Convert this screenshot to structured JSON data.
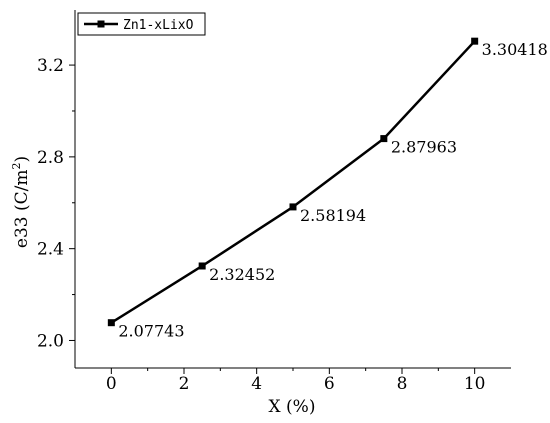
{
  "chart_data": {
    "type": "line",
    "title": "",
    "xlabel": "X (%)",
    "ylabel": {
      "main": "e33 (C/m",
      "sup": "2",
      "close": ")"
    },
    "x": [
      0,
      2.5,
      5,
      7.5,
      10
    ],
    "series": [
      {
        "name": "Zn1-xLixO",
        "values": [
          2.07743,
          2.32452,
          2.58194,
          2.87963,
          3.30418
        ],
        "color": "#000000",
        "marker": "square"
      }
    ],
    "data_labels": [
      "2.07743",
      "2.32452",
      "2.58194",
      "2.87963",
      "3.30418"
    ],
    "xlim": [
      -1,
      11
    ],
    "ylim": [
      1.88,
      3.44
    ],
    "x_ticks": [
      0,
      2,
      4,
      6,
      8,
      10
    ],
    "y_ticks": [
      2.0,
      2.4,
      2.8,
      3.2
    ],
    "x_tick_labels": [
      "0",
      "2",
      "4",
      "6",
      "8",
      "10"
    ],
    "y_tick_labels": [
      "2.0",
      "2.4",
      "2.8",
      "3.2"
    ],
    "grid": false,
    "legend_position": "top-left"
  }
}
